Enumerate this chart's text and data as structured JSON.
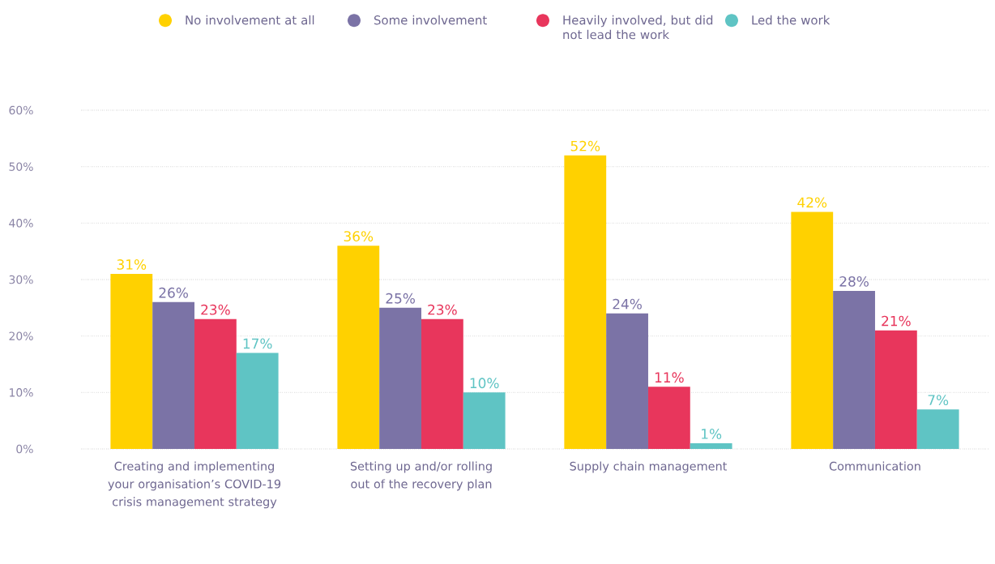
{
  "chart_data": {
    "type": "bar",
    "categories": [
      "Creating and implementing your organisation’s COVID-19 crisis management strategy",
      "Setting up and/or rolling out of the recovery plan",
      "Supply chain management",
      "Communication"
    ],
    "series": [
      {
        "name": "No involvement at all",
        "color": "#ffd100",
        "values": [
          31,
          36,
          52,
          42
        ],
        "value_labels": [
          "31%",
          "36%",
          "52%",
          "42%"
        ]
      },
      {
        "name": "Some involvement",
        "color": "#7b73a6",
        "values": [
          26,
          25,
          24,
          28
        ],
        "value_labels": [
          "26%",
          "25%",
          "24%",
          "28%"
        ]
      },
      {
        "name": "Heavily involved, but did not lead the work",
        "color": "#e8365c",
        "values": [
          23,
          23,
          11,
          21
        ],
        "value_labels": [
          "23%",
          "23%",
          "11%",
          "21%"
        ]
      },
      {
        "name": "Led the work",
        "color": "#5fc4c4",
        "values": [
          17,
          10,
          1,
          7
        ],
        "value_labels": [
          "17%",
          "10%",
          "1%",
          "7%"
        ]
      }
    ],
    "ylim": [
      0,
      60
    ],
    "yticks": [
      {
        "value": 0,
        "label": "0%"
      },
      {
        "value": 10,
        "label": "10%"
      },
      {
        "value": 20,
        "label": "20%"
      },
      {
        "value": 30,
        "label": "30%"
      },
      {
        "value": 40,
        "label": "40%"
      },
      {
        "value": 50,
        "label": "50%"
      },
      {
        "value": 60,
        "label": "60%"
      }
    ],
    "grid": "y",
    "legend": "top"
  }
}
